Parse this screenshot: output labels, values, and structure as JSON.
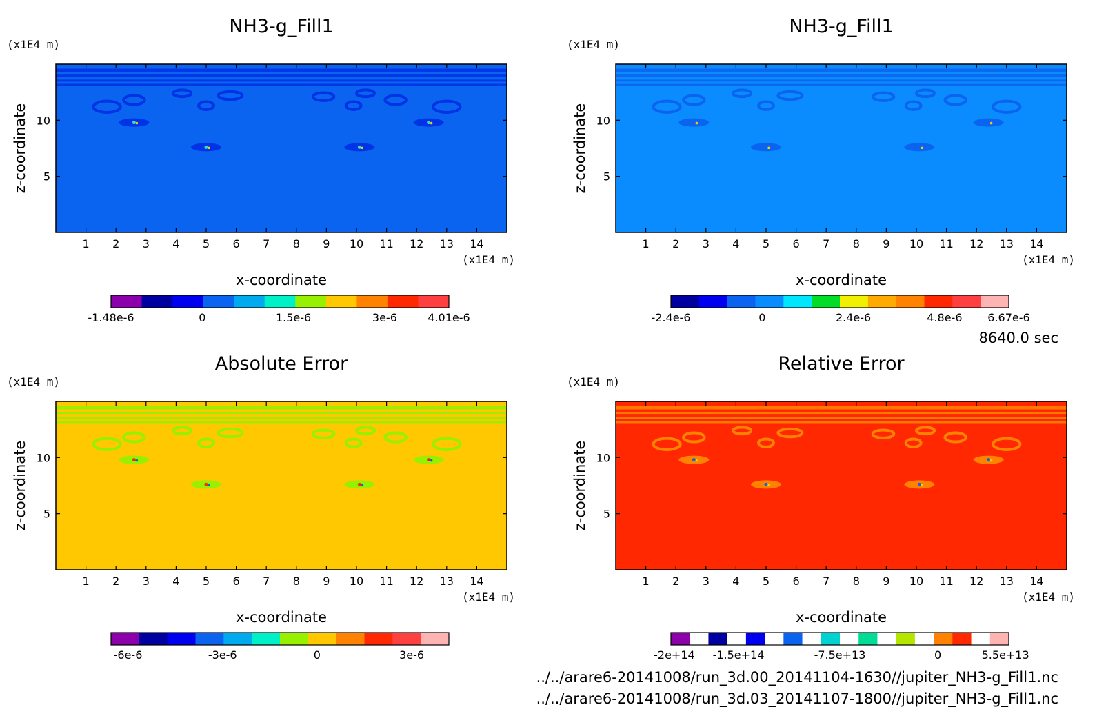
{
  "time_label": "8640.0 sec",
  "files": [
    "../../arare6-20141008/run_3d.00_20141104-1630//jupiter_NH3-g_Fill1.nc",
    "../../arare6-20141008/run_3d.03_20141107-1800//jupiter_NH3-g_Fill1.nc"
  ],
  "chart_data": [
    {
      "type": "heatmap",
      "title": "NH3-g_Fill1",
      "xlabel": "x-coordinate",
      "ylabel": "z-coordinate",
      "x_unit": "(x1E4 m)",
      "y_unit": "(x1E4 m)",
      "xlim": [
        0,
        15
      ],
      "ylim": [
        0,
        15
      ],
      "x_ticks": [
        1,
        2,
        3,
        4,
        5,
        6,
        7,
        8,
        9,
        10,
        11,
        12,
        13,
        14
      ],
      "y_ticks": [
        5,
        10
      ],
      "background_color": "#0a64f0",
      "feature_color": "#0032e6",
      "core_colors": [
        "#33ddcc",
        "#ffcc00"
      ],
      "colorbar": {
        "colors": [
          "#8b00aa",
          "#0000a0",
          "#0000f0",
          "#0a64f0",
          "#00aaee",
          "#00f0c8",
          "#96f000",
          "#ffc800",
          "#ff8200",
          "#ff2800",
          "#ff4040"
        ],
        "tick_labels": [
          "-1.48e-6",
          "0",
          "1.5e-6",
          "3e-6",
          "4.01e-6"
        ],
        "tick_positions": [
          0,
          0.27,
          0.54,
          0.81,
          1.0
        ]
      }
    },
    {
      "type": "heatmap",
      "title": "NH3-g_Fill1",
      "xlabel": "x-coordinate",
      "ylabel": "z-coordinate",
      "x_unit": "(x1E4 m)",
      "y_unit": "(x1E4 m)",
      "xlim": [
        0,
        15
      ],
      "ylim": [
        0,
        15
      ],
      "x_ticks": [
        1,
        2,
        3,
        4,
        5,
        6,
        7,
        8,
        9,
        10,
        11,
        12,
        13,
        14
      ],
      "y_ticks": [
        5,
        10
      ],
      "background_color": "#0a8cff",
      "feature_color": "#0a64f0",
      "core_colors": [
        "#0a64f0",
        "#ffcc00"
      ],
      "colorbar": {
        "colors": [
          "#0000a0",
          "#0000f0",
          "#0a64f0",
          "#0a8cff",
          "#00e6ff",
          "#00dc28",
          "#f0f000",
          "#ffaa00",
          "#ff8200",
          "#ff2800",
          "#ff4040",
          "#ffb4b4"
        ],
        "tick_labels": [
          "-2.4e-6",
          "0",
          "2.4e-6",
          "4.8e-6",
          "6.67e-6"
        ],
        "tick_positions": [
          0,
          0.27,
          0.54,
          0.81,
          1.0
        ]
      }
    },
    {
      "type": "heatmap",
      "title": "Absolute Error",
      "xlabel": "x-coordinate",
      "ylabel": "z-coordinate",
      "x_unit": "(x1E4 m)",
      "y_unit": "(x1E4 m)",
      "xlim": [
        0,
        15
      ],
      "ylim": [
        0,
        15
      ],
      "x_ticks": [
        1,
        2,
        3,
        4,
        5,
        6,
        7,
        8,
        9,
        10,
        11,
        12,
        13,
        14
      ],
      "y_ticks": [
        5,
        10
      ],
      "background_color": "#ffc800",
      "feature_color": "#96f000",
      "core_colors": [
        "#ff2800",
        "#0a64f0"
      ],
      "colorbar": {
        "colors": [
          "#8b00aa",
          "#0000a0",
          "#0000f0",
          "#0a64f0",
          "#00aaee",
          "#00f0c8",
          "#96f000",
          "#ffc800",
          "#ff8200",
          "#ff2800",
          "#ff4040",
          "#ffb4b4"
        ],
        "tick_labels": [
          "-6e-6",
          "-3e-6",
          "0",
          "3e-6"
        ],
        "tick_positions": [
          0.05,
          0.33,
          0.61,
          0.89
        ]
      }
    },
    {
      "type": "heatmap",
      "title": "Relative Error",
      "xlabel": "x-coordinate",
      "ylabel": "z-coordinate",
      "x_unit": "(x1E4 m)",
      "y_unit": "(x1E4 m)",
      "xlim": [
        0,
        15
      ],
      "ylim": [
        0,
        15
      ],
      "x_ticks": [
        1,
        2,
        3,
        4,
        5,
        6,
        7,
        8,
        9,
        10,
        11,
        12,
        13,
        14
      ],
      "y_ticks": [
        5,
        10
      ],
      "background_color": "#ff2800",
      "feature_color": "#ff8200",
      "core_colors": [
        "#0a64f0",
        "#ffcc00"
      ],
      "colorbar": {
        "colors": [
          "#8b00aa",
          "#ffffff",
          "#0000a0",
          "#ffffff",
          "#0000f0",
          "#ffffff",
          "#0a64f0",
          "#ffffff",
          "#00d2d2",
          "#ffffff",
          "#00dc96",
          "#ffffff",
          "#b4e600",
          "#ffffff",
          "#ff8200",
          "#ff2800",
          "#ffffff",
          "#ffb4b4"
        ],
        "tick_labels": [
          "-2e+14",
          "-1.5e+14",
          "-7.5e+13",
          "0",
          "5.5e+13"
        ],
        "tick_positions": [
          0.01,
          0.2,
          0.5,
          0.79,
          0.99
        ]
      }
    }
  ]
}
